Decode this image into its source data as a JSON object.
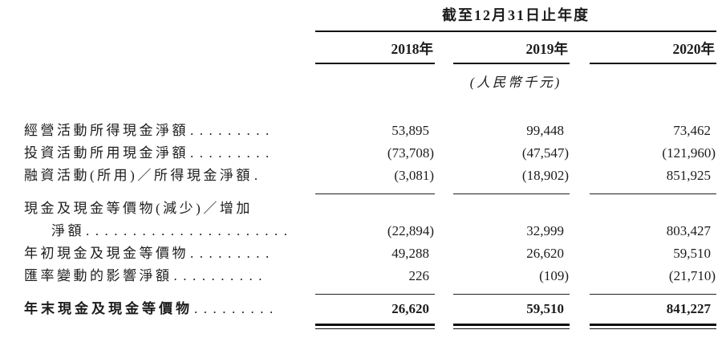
{
  "table": {
    "period_header": "截至12月31日止年度",
    "unit_note": "(人民幣千元)",
    "columns": [
      "2018年",
      "2019年",
      "2020年"
    ],
    "rows": [
      {
        "label": "經營活動所得現金淨額",
        "dots": ".........",
        "values": [
          "53,895",
          "99,448",
          "73,462"
        ]
      },
      {
        "label": "投資活動所用現金淨額",
        "dots": ".........",
        "values": [
          "(73,708)",
          "(47,547)",
          "(121,960)"
        ]
      },
      {
        "label": "融資活動(所用)／所得現金淨額",
        "dots": ".",
        "values": [
          "(3,081)",
          "(18,902)",
          "851,925"
        ]
      },
      {
        "label": "現金及現金等價物(減少)／增加",
        "dots": "",
        "values": [
          "",
          "",
          ""
        ]
      },
      {
        "label": "淨額",
        "dots": "......................",
        "values": [
          "(22,894)",
          "32,999",
          "803,427"
        ]
      },
      {
        "label": "年初現金及現金等價物",
        "dots": ".........",
        "values": [
          "49,288",
          "26,620",
          "59,510"
        ]
      },
      {
        "label": "匯率變動的影響淨額",
        "dots": "..........",
        "values": [
          "226",
          "(109)",
          "(21,710)"
        ]
      },
      {
        "label": "年末現金及現金等價物",
        "dots": ".........",
        "values": [
          "26,620",
          "59,510",
          "841,227"
        ]
      }
    ]
  }
}
